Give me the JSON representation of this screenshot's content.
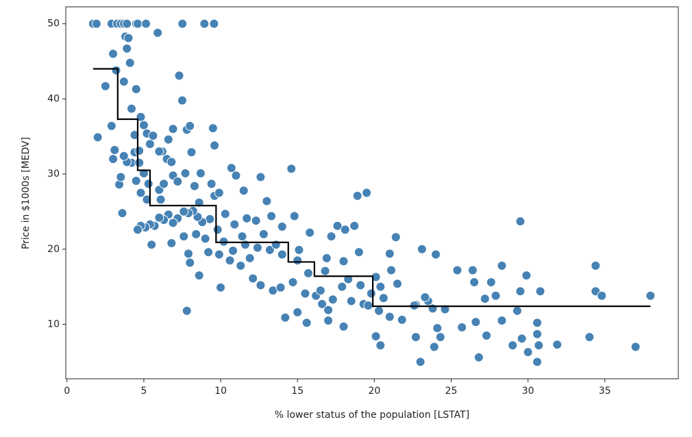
{
  "chart_data": {
    "type": "scatter",
    "xlabel": "% lower status of the population [LSTAT]",
    "ylabel": "Price in $1000s [MEDV]",
    "xlim": [
      -0.08,
      39.78
    ],
    "ylim": [
      2.75,
      52.25
    ],
    "xticks": [
      0,
      5,
      10,
      15,
      20,
      25,
      30,
      35
    ],
    "yticks": [
      10,
      20,
      30,
      40,
      50
    ],
    "color": "#4682b4",
    "x": [
      1.7,
      1.92,
      2.9,
      3.26,
      3.5,
      3.71,
      3.9,
      4.5,
      4.6,
      5.14,
      7.51,
      8.94,
      9.57,
      2.0,
      2.5,
      2.9,
      3.0,
      3.1,
      3.0,
      3.2,
      3.4,
      3.5,
      3.6,
      3.7,
      3.8,
      3.9,
      4.0,
      4.1,
      4.2,
      4.4,
      4.5,
      4.7,
      4.8,
      5.0,
      5.2,
      5.4,
      5.9,
      6.2,
      6.5,
      6.6,
      6.9,
      7.3,
      7.5,
      7.8,
      8.0,
      8.1,
      9.5,
      9.6,
      10.7,
      11.0,
      11.5,
      12.6,
      13.0,
      14.6,
      18.9,
      19.5,
      21.4,
      23.1,
      24.0,
      29.5,
      7.8,
      8.6,
      10.0,
      14.2,
      15.0,
      15.6,
      17.0,
      18.0,
      20.1,
      20.4,
      22.7,
      23.0,
      23.9,
      24.3,
      24.1,
      25.7,
      26.6,
      26.8,
      27.3,
      28.3,
      29.0,
      29.6,
      30.0,
      30.6,
      30.7,
      30.6,
      30.6,
      31.9,
      34.0,
      37.0,
      34.4,
      34.4,
      34.8,
      37.97,
      29.9,
      29.3,
      30.8,
      29.5,
      28.3,
      27.6,
      27.2,
      27.9,
      26.4,
      26.5,
      25.4,
      24.6,
      23.5,
      22.7,
      23.3,
      23.8,
      21.5,
      21.1,
      21.0,
      20.6,
      20.1,
      19.8,
      19.0,
      18.7,
      18.1,
      17.6,
      17.2,
      18.0,
      16.9,
      15.8,
      15.1,
      14.8,
      14.0,
      13.3,
      12.8,
      12.3,
      11.7,
      11.4,
      10.9,
      10.3,
      9.8,
      9.3,
      8.8,
      8.5,
      8.2,
      7.9,
      7.6,
      7.2,
      6.9,
      6.6,
      6.3,
      6.0,
      5.7,
      5.4,
      5.1,
      4.8,
      4.6,
      5.5,
      6.8,
      7.9,
      8.0,
      9.2,
      9.9,
      10.6,
      11.3,
      11.9,
      12.1,
      12.6,
      13.4,
      13.9,
      14.7,
      15.5,
      16.2,
      16.5,
      17.3,
      17.9,
      18.5,
      19.3,
      19.6,
      20.3,
      21.0,
      21.8,
      22.6,
      16.6,
      17.0,
      15.0,
      14.0,
      13.2,
      12.4,
      11.6,
      10.8,
      10.2,
      9.0,
      8.4,
      7.6,
      13.6,
      15.7,
      16.8,
      18.3,
      19.1,
      20.4,
      6.0,
      6.3,
      6.9,
      7.2,
      7.7,
      8.3,
      8.7,
      9.4,
      8.6,
      6.1,
      5.3,
      4.8,
      4.5,
      4.2,
      3.9,
      3.7,
      4.7,
      5.0,
      5.2,
      6.8,
      6.0,
      4.4,
      5.6,
      9.6,
      9.9
    ],
    "values": [
      50,
      50,
      50,
      50,
      50,
      50,
      50,
      50,
      50,
      50,
      50,
      50,
      50,
      34.9,
      41.7,
      36.4,
      46,
      33.2,
      32,
      43.8,
      28.6,
      29.6,
      24.8,
      42.3,
      48.3,
      46.7,
      48.1,
      44.8,
      38.7,
      32.9,
      41.3,
      33.1,
      37.6,
      36.5,
      35.4,
      34,
      48.8,
      33,
      32,
      34.6,
      36,
      43.1,
      39.8,
      35.9,
      36.4,
      32.9,
      36.1,
      33.8,
      30.8,
      29.8,
      27.8,
      29.6,
      26.4,
      30.7,
      27.1,
      27.5,
      21.6,
      20,
      19.3,
      23.7,
      11.8,
      16.5,
      14.9,
      10.9,
      11.6,
      10.2,
      10.5,
      9.7,
      8.4,
      7.2,
      8.3,
      5,
      7,
      8.3,
      9.5,
      9.6,
      10.3,
      5.6,
      8.5,
      10.5,
      7.2,
      8.1,
      6.3,
      5,
      7.2,
      8.7,
      10.2,
      7.3,
      8.3,
      7,
      17.8,
      14.4,
      13.8,
      13.8,
      16.5,
      11.8,
      14.4,
      14.4,
      17.8,
      15.6,
      13.4,
      13.8,
      17.2,
      15.6,
      17.2,
      12.0,
      13.1,
      12.6,
      13.6,
      12.1,
      15.4,
      17.2,
      19.4,
      13.5,
      16.3,
      14.1,
      19.6,
      23.1,
      22.6,
      23.1,
      21.7,
      18.4,
      18.8,
      22.2,
      19.9,
      24.4,
      23,
      24.4,
      22.0,
      23.8,
      24.1,
      21.7,
      23.3,
      24.7,
      22.6,
      24.0,
      23.6,
      24.3,
      25.1,
      24.8,
      25.0,
      24.1,
      23.5,
      24.6,
      23.9,
      24.2,
      23.1,
      23.3,
      22.9,
      23.1,
      22.6,
      20.6,
      20.8,
      19.4,
      18.2,
      19.6,
      19.3,
      18.5,
      17.8,
      18.8,
      16.1,
      15.2,
      14.5,
      14.9,
      15.6,
      14.1,
      13.8,
      14.5,
      13.3,
      15.0,
      13.1,
      12.7,
      12.5,
      11.8,
      11.0,
      10.6,
      12.5,
      12.7,
      11.9,
      18.5,
      19.3,
      19.9,
      20.2,
      20.6,
      19.8,
      21.0,
      21.4,
      22.0,
      21.7,
      20.6,
      16.8,
      17.1,
      16.0,
      15.2,
      15.0,
      27.9,
      28.7,
      29.8,
      29.0,
      30.1,
      28.4,
      30.1,
      28.7,
      26.2,
      26.6,
      28.7,
      27.5,
      29.1,
      31.5,
      31.6,
      32.4,
      31.5,
      30.1,
      26.6,
      31.6,
      33,
      35.2,
      35.1,
      27.1,
      27.5
    ],
    "step": {
      "type": "line",
      "color": "#000000",
      "x": [
        1.7,
        3.3,
        3.3,
        4.6,
        4.6,
        5.4,
        5.4,
        9.7,
        9.7,
        14.4,
        14.4,
        16.1,
        16.1,
        19.9,
        19.9,
        37.97
      ],
      "values": [
        44,
        44,
        37.3,
        37.3,
        30.5,
        30.5,
        25.8,
        25.8,
        20.9,
        20.9,
        18.3,
        18.3,
        16.4,
        16.4,
        12.4,
        12.4
      ]
    }
  }
}
